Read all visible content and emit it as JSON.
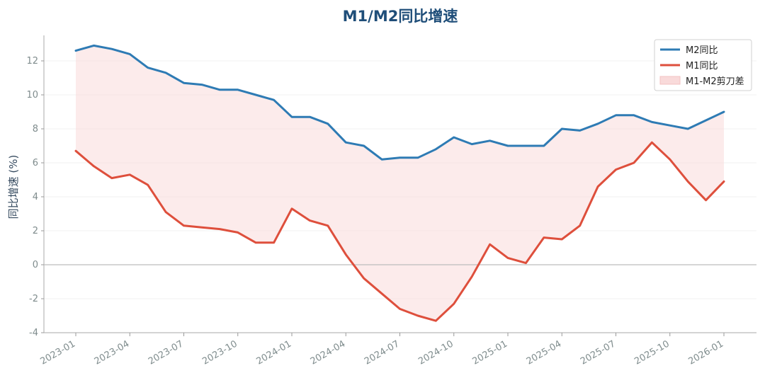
{
  "chart_data": {
    "type": "line",
    "title": "M1/M2同比增速",
    "ylabel": "同比增速 (%)",
    "xlabel": "",
    "ylim": [
      -4,
      13.5
    ],
    "yticks": [
      -4,
      -2,
      0,
      2,
      4,
      6,
      8,
      10,
      12
    ],
    "x": [
      "2023-01",
      "2023-02",
      "2023-03",
      "2023-04",
      "2023-05",
      "2023-06",
      "2023-07",
      "2023-08",
      "2023-09",
      "2023-10",
      "2023-11",
      "2023-12",
      "2024-01",
      "2024-02",
      "2024-03",
      "2024-04",
      "2024-05",
      "2024-06",
      "2024-07",
      "2024-08",
      "2024-09",
      "2024-10",
      "2024-11",
      "2024-12",
      "2025-01",
      "2025-02",
      "2025-03",
      "2025-04",
      "2025-05",
      "2025-06",
      "2025-07",
      "2025-08",
      "2025-09",
      "2025-10",
      "2025-11",
      "2025-12",
      "2026-01"
    ],
    "xticks": [
      "2023-01",
      "2023-04",
      "2023-07",
      "2023-10",
      "2024-01",
      "2024-04",
      "2024-07",
      "2024-10",
      "2025-01",
      "2025-04",
      "2025-07",
      "2025-10",
      "2026-01"
    ],
    "series": [
      {
        "name": "M2同比",
        "color": "#2e7bb4",
        "values": [
          12.6,
          12.9,
          12.7,
          12.4,
          11.6,
          11.3,
          10.7,
          10.6,
          10.3,
          10.3,
          10.0,
          9.7,
          8.7,
          8.7,
          8.3,
          7.2,
          7.0,
          6.2,
          6.3,
          6.3,
          6.8,
          7.5,
          7.1,
          7.3,
          7.0,
          7.0,
          7.0,
          8.0,
          7.9,
          8.3,
          8.8,
          8.8,
          8.4,
          8.2,
          8.0,
          8.5,
          9.0
        ]
      },
      {
        "name": "M1同比",
        "color": "#de4f3c",
        "values": [
          6.7,
          5.8,
          5.1,
          5.3,
          4.7,
          3.1,
          2.3,
          2.2,
          2.1,
          1.9,
          1.3,
          1.3,
          3.3,
          2.6,
          2.3,
          0.6,
          -0.8,
          -1.7,
          -2.6,
          -3.0,
          -3.3,
          -2.3,
          -0.7,
          1.2,
          0.4,
          0.1,
          1.6,
          1.5,
          2.3,
          4.6,
          5.6,
          6.0,
          7.2,
          6.2,
          4.9,
          3.8,
          4.9
        ]
      }
    ],
    "fill": {
      "name": "M1-M2剪刀差",
      "color": "#f9dada"
    },
    "grid": true,
    "zero_line": true,
    "legend": "top-right"
  }
}
